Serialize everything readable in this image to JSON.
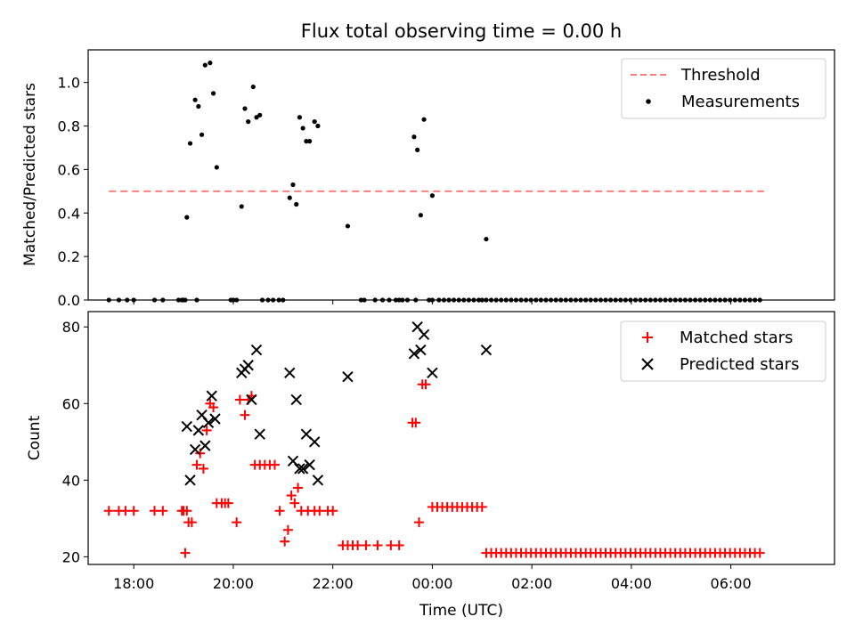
{
  "figure": {
    "title": "Flux total observing time = 0.00 h",
    "xlabel": "Time (UTC)",
    "x_tick_labels": [
      "18:00",
      "20:00",
      "22:00",
      "00:00",
      "02:00",
      "04:00",
      "06:00"
    ]
  },
  "chart_data": [
    {
      "type": "scatter",
      "ylabel": "Matched/Predicted stars",
      "xlim": [
        "17:05",
        "08:05"
      ],
      "ylim": [
        0,
        1.15
      ],
      "y_tick_labels": [
        "0.0",
        "0.2",
        "0.4",
        "0.6",
        "0.8",
        "1.0"
      ],
      "legend_position": "top-right",
      "threshold": {
        "name": "Threshold",
        "value": 0.5,
        "x_start": "17:30",
        "x_end": "06:40",
        "color": "#ff7f7f",
        "style": "dashed"
      },
      "series": [
        {
          "name": "Measurements",
          "color": "#000000",
          "marker": "dot",
          "points": [
            [
              "17:30",
              0
            ],
            [
              "17:42",
              0
            ],
            [
              "17:52",
              0
            ],
            [
              "18:00",
              0
            ],
            [
              "18:25",
              0
            ],
            [
              "18:35",
              0
            ],
            [
              "18:54",
              0
            ],
            [
              "18:58",
              0
            ],
            [
              "19:00",
              0
            ],
            [
              "19:02",
              0
            ],
            [
              "19:16",
              0
            ],
            [
              "19:57",
              0
            ],
            [
              "20:00",
              0
            ],
            [
              "20:04",
              0
            ],
            [
              "20:35",
              0
            ],
            [
              "20:42",
              0
            ],
            [
              "20:48",
              0
            ],
            [
              "20:55",
              0
            ],
            [
              "21:00",
              0
            ],
            [
              "22:34",
              0
            ],
            [
              "22:38",
              0
            ],
            [
              "22:51",
              0
            ],
            [
              "23:00",
              0
            ],
            [
              "23:08",
              0
            ],
            [
              "23:16",
              0
            ],
            [
              "23:20",
              0
            ],
            [
              "23:24",
              0
            ],
            [
              "23:30",
              0
            ],
            [
              "23:40",
              0
            ],
            [
              "23:56",
              0
            ],
            [
              "24:00",
              0
            ],
            [
              "00:08",
              0
            ],
            [
              "00:14",
              0
            ],
            [
              "00:20",
              0
            ],
            [
              "00:26",
              0
            ],
            [
              "00:32",
              0
            ],
            [
              "00:38",
              0
            ],
            [
              "00:44",
              0
            ],
            [
              "00:50",
              0
            ],
            [
              "00:56",
              0
            ],
            [
              "01:00",
              0
            ],
            [
              "19:04",
              0.38
            ],
            [
              "19:08",
              0.72
            ],
            [
              "19:14",
              0.92
            ],
            [
              "19:18",
              0.89
            ],
            [
              "19:22",
              0.76
            ],
            [
              "19:26",
              1.08
            ],
            [
              "19:32",
              1.09
            ],
            [
              "19:36",
              0.95
            ],
            [
              "19:40",
              0.61
            ],
            [
              "20:10",
              0.43
            ],
            [
              "20:14",
              0.88
            ],
            [
              "20:18",
              0.82
            ],
            [
              "20:24",
              0.98
            ],
            [
              "20:28",
              0.84
            ],
            [
              "20:32",
              0.85
            ],
            [
              "21:08",
              0.47
            ],
            [
              "21:12",
              0.53
            ],
            [
              "21:16",
              0.44
            ],
            [
              "21:20",
              0.84
            ],
            [
              "21:24",
              0.79
            ],
            [
              "21:28",
              0.73
            ],
            [
              "21:32",
              0.73
            ],
            [
              "21:38",
              0.82
            ],
            [
              "21:42",
              0.8
            ],
            [
              "22:18",
              0.34
            ],
            [
              "23:38",
              0.75
            ],
            [
              "23:42",
              0.69
            ],
            [
              "23:46",
              0.39
            ],
            [
              "23:50",
              0.83
            ],
            [
              "00:00",
              0.48
            ],
            [
              "01:05",
              0.28
            ]
          ],
          "dense_zero_range": {
            "x_start": "01:05",
            "x_end": "06:40",
            "step_minutes": 6,
            "y": 0
          }
        }
      ]
    },
    {
      "type": "scatter",
      "ylabel": "Count",
      "xlim": [
        "17:05",
        "08:05"
      ],
      "ylim": [
        18,
        84
      ],
      "y_tick_labels": [
        "20",
        "40",
        "60",
        "80"
      ],
      "legend_position": "top-right",
      "series": [
        {
          "name": "Matched stars",
          "color": "#ff0000",
          "marker": "plus",
          "points": [
            [
              "17:30",
              32
            ],
            [
              "17:42",
              32
            ],
            [
              "17:50",
              32
            ],
            [
              "18:00",
              32
            ],
            [
              "18:25",
              32
            ],
            [
              "18:35",
              32
            ],
            [
              "18:58",
              32
            ],
            [
              "19:00",
              32
            ],
            [
              "19:02",
              21
            ],
            [
              "19:04",
              32
            ],
            [
              "19:06",
              29
            ],
            [
              "19:10",
              29
            ],
            [
              "19:16",
              44
            ],
            [
              "19:20",
              47
            ],
            [
              "19:24",
              43
            ],
            [
              "19:28",
              53
            ],
            [
              "19:32",
              60
            ],
            [
              "19:36",
              59
            ],
            [
              "19:40",
              34
            ],
            [
              "19:46",
              34
            ],
            [
              "19:50",
              34
            ],
            [
              "19:54",
              34
            ],
            [
              "20:04",
              29
            ],
            [
              "20:08",
              61
            ],
            [
              "20:14",
              57
            ],
            [
              "20:18",
              61
            ],
            [
              "20:22",
              62
            ],
            [
              "20:26",
              44
            ],
            [
              "20:32",
              44
            ],
            [
              "20:38",
              44
            ],
            [
              "20:44",
              44
            ],
            [
              "20:50",
              44
            ],
            [
              "20:56",
              32
            ],
            [
              "21:02",
              24
            ],
            [
              "21:06",
              27
            ],
            [
              "21:10",
              36
            ],
            [
              "21:14",
              34
            ],
            [
              "21:18",
              38
            ],
            [
              "21:22",
              32
            ],
            [
              "21:30",
              32
            ],
            [
              "21:38",
              32
            ],
            [
              "21:44",
              32
            ],
            [
              "21:54",
              32
            ],
            [
              "22:00",
              32
            ],
            [
              "22:12",
              23
            ],
            [
              "22:18",
              23
            ],
            [
              "22:24",
              23
            ],
            [
              "22:30",
              23
            ],
            [
              "22:40",
              23
            ],
            [
              "22:54",
              23
            ],
            [
              "23:10",
              23
            ],
            [
              "23:20",
              23
            ],
            [
              "23:36",
              55
            ],
            [
              "23:40",
              55
            ],
            [
              "23:44",
              29
            ],
            [
              "23:48",
              65
            ],
            [
              "23:52",
              65
            ],
            [
              "24:00",
              33
            ],
            [
              "00:06",
              33
            ],
            [
              "00:12",
              33
            ],
            [
              "00:18",
              33
            ],
            [
              "00:24",
              33
            ],
            [
              "00:30",
              33
            ],
            [
              "00:36",
              33
            ],
            [
              "00:42",
              33
            ],
            [
              "00:48",
              33
            ],
            [
              "00:54",
              33
            ],
            [
              "01:00",
              33
            ]
          ],
          "dense_range": {
            "x_start": "01:05",
            "x_end": "06:40",
            "step_minutes": 6,
            "y": 21
          }
        },
        {
          "name": "Predicted stars",
          "color": "#000000",
          "marker": "x",
          "points": [
            [
              "19:04",
              54
            ],
            [
              "19:08",
              40
            ],
            [
              "19:14",
              48
            ],
            [
              "19:18",
              53
            ],
            [
              "19:22",
              57
            ],
            [
              "19:26",
              49
            ],
            [
              "19:30",
              55
            ],
            [
              "19:34",
              62
            ],
            [
              "19:38",
              56
            ],
            [
              "20:10",
              68
            ],
            [
              "20:14",
              69
            ],
            [
              "20:18",
              70
            ],
            [
              "20:22",
              61
            ],
            [
              "20:28",
              74
            ],
            [
              "20:32",
              52
            ],
            [
              "21:08",
              68
            ],
            [
              "21:12",
              45
            ],
            [
              "21:16",
              61
            ],
            [
              "21:20",
              43
            ],
            [
              "21:24",
              43
            ],
            [
              "21:28",
              52
            ],
            [
              "21:32",
              44
            ],
            [
              "21:38",
              50
            ],
            [
              "21:42",
              40
            ],
            [
              "22:18",
              67
            ],
            [
              "23:38",
              73
            ],
            [
              "23:42",
              80
            ],
            [
              "23:46",
              74
            ],
            [
              "23:50",
              78
            ],
            [
              "24:00",
              68
            ],
            [
              "01:05",
              74
            ]
          ]
        }
      ]
    }
  ]
}
